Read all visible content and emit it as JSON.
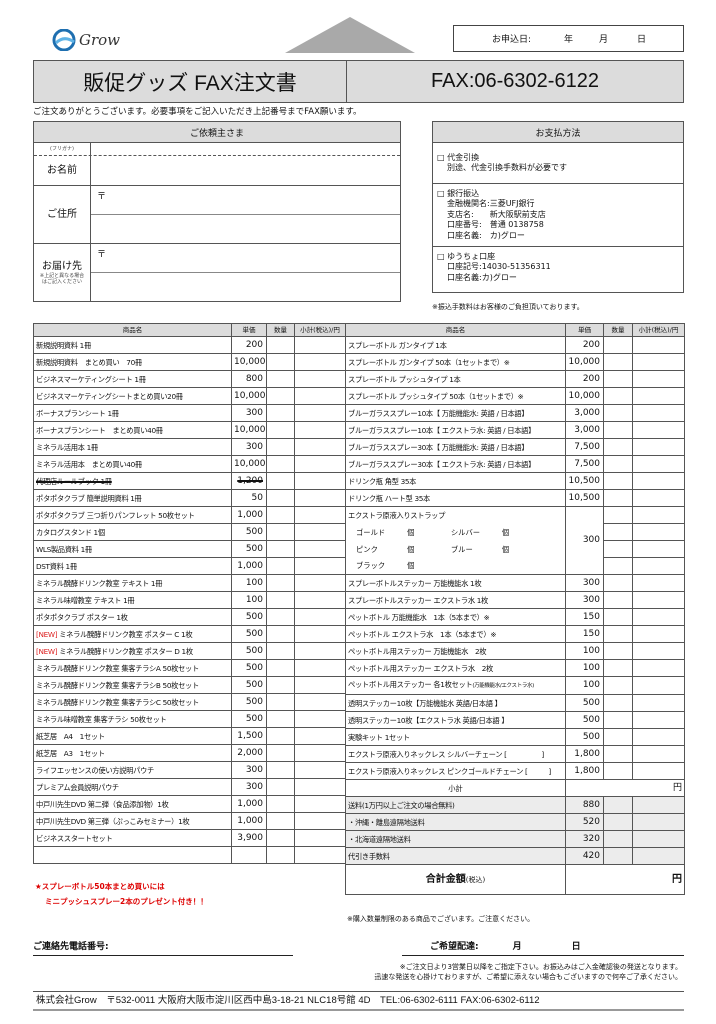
{
  "logo": {
    "text": "Grow",
    "color": "#1e6fb0"
  },
  "date": {
    "label": "お申込日:",
    "year": "年",
    "month": "月",
    "day": "日"
  },
  "title": {
    "main": "販促グッズ FAX注文書",
    "fax": "FAX:06-6302-6122"
  },
  "intro": "ご注文ありがとうございます。必要事項をご記入いただき上記番号までFAX願います。",
  "client": {
    "header": "ご依頼主さま",
    "furigana": "(フリガナ)",
    "name": "お名前",
    "address": "ご住所",
    "postal": "〒",
    "delivery": "お届け先",
    "delivery_note1": "※上記と異なる場合",
    "delivery_note2": "はご記入ください"
  },
  "payment": {
    "header": "お支払方法",
    "cod": {
      "title": "□ 代金引換",
      "note": "別途、代金引換手数料が必要です"
    },
    "bank": {
      "title": "□ 銀行振込",
      "l1": "金融機関名:三菱UFJ銀行",
      "l2": "支店名:　　新大阪駅前支店",
      "l3": "口座番号:　普通 0138758",
      "l4": "口座名義:　カ)グロー"
    },
    "post": {
      "title": "□ ゆうちょ口座",
      "l1": "口座記号:14030-51356311",
      "l2": "口座名義:カ)グロー"
    },
    "note": "※振込手数料はお客様のご負担頂いております。"
  },
  "table_headers": {
    "name": "商品名",
    "price": "単価",
    "qty": "数量",
    "subtotal": "小計(税込)/円"
  },
  "left_items": [
    {
      "name": "新規説明資料 1冊",
      "price": "200"
    },
    {
      "name": "新規説明資料　まとめ買い　70冊",
      "price": "10,000"
    },
    {
      "name": "ビジネスマーケティングシート 1冊",
      "price": "800"
    },
    {
      "name": "ビジネスマーケティングシートまとめ買い20冊",
      "price": "10,000"
    },
    {
      "name": "ボーナスプランシート 1冊",
      "price": "300"
    },
    {
      "name": "ボーナスプランシート　まとめ買い40冊",
      "price": "10,000"
    },
    {
      "name": "ミネラル活用本 1冊",
      "price": "300"
    },
    {
      "name": "ミネラル活用本　まとめ買い40冊",
      "price": "10,000"
    },
    {
      "name": "代理店ルールブック 1冊",
      "price": "1,200",
      "strike": true
    },
    {
      "name": "ポタポタクラブ 簡単説明資料 1冊",
      "price": "50"
    },
    {
      "name": "ポタポタクラブ 三つ折りパンフレット 50枚セット",
      "price": "1,000"
    },
    {
      "name": "カタログスタンド 1個",
      "price": "500"
    },
    {
      "name": "WLS製品資料 1冊",
      "price": "500"
    },
    {
      "name": "DST資料 1冊",
      "price": "1,000"
    },
    {
      "name": "ミネラル醗酵ドリンク教室 テキスト 1冊",
      "price": "100"
    },
    {
      "name": "ミネラル味噌教室 テキスト 1冊",
      "price": "100"
    },
    {
      "name": "ポタポタクラブ ポスター 1枚",
      "price": "500"
    },
    {
      "name": "ミネラル醗酵ドリンク教室 ポスター C 1枚",
      "price": "500",
      "new": "[NEW]"
    },
    {
      "name": "ミネラル醗酵ドリンク教室 ポスター D 1枚",
      "price": "500",
      "new": "[NEW]"
    },
    {
      "name": "ミネラル醗酵ドリンク教室 集客チラシA 50枚セット",
      "price": "500"
    },
    {
      "name": "ミネラル醗酵ドリンク教室 集客チラシB 50枚セット",
      "price": "500"
    },
    {
      "name": "ミネラル醗酵ドリンク教室 集客チラシC 50枚セット",
      "price": "500"
    },
    {
      "name": "ミネラル味噌教室 集客チラシ 50枚セット",
      "price": "500"
    },
    {
      "name": "紙芝居　A4　1セット",
      "price": "1,500"
    },
    {
      "name": "紙芝居　A3　1セット",
      "price": "2,000"
    },
    {
      "name": "ライフエッセンスの使い方説明パウチ",
      "price": "300"
    },
    {
      "name": "プレミアム会員説明パウチ",
      "price": "300"
    },
    {
      "name": "中戸川先生DVD 第二弾（食品添加物）1枚",
      "price": "1,000"
    },
    {
      "name": "中戸川先生DVD 第三弾（ぷっこみセミナー）1枚",
      "price": "1,000"
    },
    {
      "name": "ビジネススタートセット",
      "price": "3,900"
    },
    {
      "name": "",
      "price": ""
    }
  ],
  "right_items_a": [
    {
      "name": "スプレーボトル ガンタイプ 1本",
      "price": "200"
    },
    {
      "name": "スプレーボトル ガンタイプ 50本（1セットまで）※",
      "price": "10,000"
    },
    {
      "name": "スプレーボトル プッシュタイプ 1本",
      "price": "200"
    },
    {
      "name": "スプレーボトル プッシュタイプ 50本（1セットまで）※",
      "price": "10,000"
    },
    {
      "name": "ブルーガラススプレー10本【 万能機能水: 英語 / 日本語】",
      "price": "3,000"
    },
    {
      "name": "ブルーガラススプレー10本【 エクストラ水: 英語 / 日本語】",
      "price": "3,000"
    },
    {
      "name": "ブルーガラススプレー30本【 万能機能水: 英語 / 日本語】",
      "price": "7,500"
    },
    {
      "name": "ブルーガラススプレー30本【 エクストラ水: 英語 / 日本語】",
      "price": "7,500"
    },
    {
      "name": "ドリンク瓶 角型 35本",
      "price": "10,500"
    },
    {
      "name": "ドリンク瓶 ハート型 35本",
      "price": "10,500"
    }
  ],
  "strap": {
    "title": "エクストラ原液入りストラップ",
    "price": "300",
    "rows": [
      "ゴールド　　　個　　　　　シルバー　　　個",
      "ピンク　　　　個　　　　　ブルー　　　　個",
      "ブラック　　　個"
    ]
  },
  "right_items_b": [
    {
      "name": "スプレーボトルステッカー 万能機能水 1枚",
      "price": "300"
    },
    {
      "name": "スプレーボトルステッカー エクストラ水 1枚",
      "price": "300"
    },
    {
      "name": "ペットボトル 万能機能水　1本（5本まで）※",
      "price": "150"
    },
    {
      "name": "ペットボトル エクストラ水　1本（5本まで）※",
      "price": "150"
    },
    {
      "name": "ペットボトル用ステッカー 万能機能水　2枚",
      "price": "100"
    },
    {
      "name": "ペットボトル用ステッカー エクストラ水　2枚",
      "price": "100"
    },
    {
      "name": "ペットボトル用ステッカー 各1枚セット",
      "sub": "(万能機能水/エクストラ水)",
      "price": "100"
    },
    {
      "name": "透明ステッカー10枚【万能機能水 英語/日本語 】",
      "price": "500"
    },
    {
      "name": "透明ステッカー10枚【エクストラ水 英語/日本語 】",
      "price": "500"
    },
    {
      "name": "実験キット 1セット",
      "price": "500"
    },
    {
      "name": "エクストラ原液入りネックレス シルバーチェーン [　　　　　]",
      "price": "1,800"
    },
    {
      "name": "エクストラ原液入りネックレス ピンクゴールドチェーン [　　　]",
      "price": "1,800"
    }
  ],
  "subtotal": {
    "label": "小計",
    "unit": "円"
  },
  "fees": [
    {
      "name": "送料(1万円以上ご注文の場合無料)",
      "price": "880"
    },
    {
      "name": "・沖縄・離島遠隔地送料",
      "price": "520"
    },
    {
      "name": "・北海道遠隔地送料",
      "price": "320"
    },
    {
      "name": "代引き手数料",
      "price": "420"
    }
  ],
  "total": {
    "label": "合計金額",
    "tax": "(税込)",
    "unit": "円"
  },
  "promo": {
    "l1": "★スプレーボトル50本まとめ買いには",
    "l2": "ミニプッシュスプレー2本のプレゼント付き！！",
    "color": "#dd0000"
  },
  "limit_note": "※購入数量制限のある商品でございます。ご注意ください。",
  "contact": {
    "phone": "ご連絡先電話番号:",
    "delivery": "ご希望配達:",
    "month": "月",
    "day": "日"
  },
  "delivery_notes": [
    "※ご注文日より3営業日以降をご指定下さい。お振込みはご入金確認後の発送となります。",
    "迅速な発送を心掛けておりますが、ご希望に添えない場合もございますので何卒ご了承ください。"
  ],
  "footer": "株式会社Grow　〒532-0011 大阪府大阪市淀川区西中島3-18-21 NLC18号館 4D　TEL:06-6302-6111 FAX:06-6302-6112"
}
